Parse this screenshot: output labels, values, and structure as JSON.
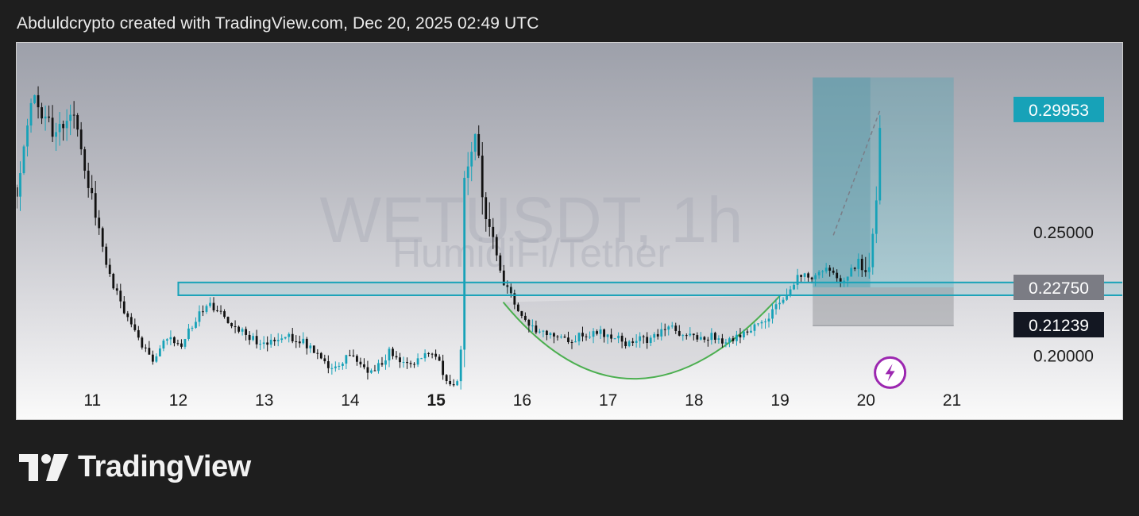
{
  "header": {
    "caption": "Abduldcrypto created with TradingView.com, Dec 20, 2025 02:49 UTC"
  },
  "brand": {
    "name": "TradingView",
    "icon": "tradingview-logo-icon"
  },
  "chart_data": {
    "type": "candlestick",
    "symbol": "WETUSDT, 1h",
    "exchange": "HumidiFi/Tether",
    "x_ticks": [
      {
        "day": 11,
        "label": "11",
        "bold": false
      },
      {
        "day": 12,
        "label": "12",
        "bold": false
      },
      {
        "day": 13,
        "label": "13",
        "bold": false
      },
      {
        "day": 14,
        "label": "14",
        "bold": false
      },
      {
        "day": 15,
        "label": "15",
        "bold": true
      },
      {
        "day": 16,
        "label": "16",
        "bold": false
      },
      {
        "day": 17,
        "label": "17",
        "bold": false
      },
      {
        "day": 18,
        "label": "18",
        "bold": false
      },
      {
        "day": 19,
        "label": "19",
        "bold": false
      },
      {
        "day": 20,
        "label": "20",
        "bold": false
      },
      {
        "day": 21,
        "label": "21",
        "bold": false
      }
    ],
    "x_range": [
      10.12,
      23.0
    ],
    "y_range": [
      0.1735,
      0.3265
    ],
    "y_ticks": [
      {
        "value": 0.25,
        "label": "0.25000"
      },
      {
        "value": 0.2,
        "label": "0.20000"
      }
    ],
    "price_labels": [
      {
        "value": 0.29953,
        "label": "0.29953",
        "color": "#17a2b8",
        "text_color": "#ffffff"
      },
      {
        "value": 0.2275,
        "label": "0.22750",
        "color": "#7b7c84",
        "text_color": "#ffffff"
      },
      {
        "value": 0.21239,
        "label": "0.21239",
        "color": "#131722",
        "text_color": "#ffffff"
      }
    ],
    "colors": {
      "up": "#17a2b8",
      "down": "#111111",
      "accent": "#17a2b8",
      "curve": "#4caf50",
      "lightning": "#9c27b0"
    },
    "anchors": [
      [
        10.12,
        0.268
      ],
      [
        10.3,
        0.305
      ],
      [
        10.55,
        0.29
      ],
      [
        10.8,
        0.298
      ],
      [
        11.0,
        0.262
      ],
      [
        11.2,
        0.232
      ],
      [
        11.45,
        0.212
      ],
      [
        11.72,
        0.196
      ],
      [
        11.85,
        0.207
      ],
      [
        12.05,
        0.204
      ],
      [
        12.15,
        0.212
      ],
      [
        12.35,
        0.222
      ],
      [
        12.5,
        0.216
      ],
      [
        12.7,
        0.211
      ],
      [
        12.95,
        0.204
      ],
      [
        13.2,
        0.208
      ],
      [
        13.4,
        0.207
      ],
      [
        13.6,
        0.2
      ],
      [
        13.8,
        0.193
      ],
      [
        14.0,
        0.2
      ],
      [
        14.25,
        0.193
      ],
      [
        14.45,
        0.201
      ],
      [
        14.7,
        0.197
      ],
      [
        14.9,
        0.201
      ],
      [
        15.05,
        0.196
      ],
      [
        15.15,
        0.187
      ],
      [
        15.28,
        0.19
      ],
      [
        15.32,
        0.272
      ],
      [
        15.45,
        0.29
      ],
      [
        15.55,
        0.265
      ],
      [
        15.65,
        0.245
      ],
      [
        15.8,
        0.228
      ],
      [
        16.0,
        0.215
      ],
      [
        16.2,
        0.21
      ],
      [
        16.5,
        0.206
      ],
      [
        16.8,
        0.209
      ],
      [
        17.0,
        0.209
      ],
      [
        17.2,
        0.205
      ],
      [
        17.5,
        0.207
      ],
      [
        17.7,
        0.212
      ],
      [
        17.9,
        0.207
      ],
      [
        18.2,
        0.208
      ],
      [
        18.4,
        0.205
      ],
      [
        18.6,
        0.209
      ],
      [
        18.8,
        0.213
      ],
      [
        18.95,
        0.22
      ],
      [
        19.1,
        0.226
      ],
      [
        19.25,
        0.233
      ],
      [
        19.35,
        0.232
      ],
      [
        19.55,
        0.236
      ],
      [
        19.7,
        0.23
      ],
      [
        19.8,
        0.233
      ],
      [
        19.9,
        0.236
      ],
      [
        20.0,
        0.232
      ],
      [
        20.05,
        0.24
      ],
      [
        20.1,
        0.25
      ],
      [
        20.13,
        0.27
      ],
      [
        20.17,
        0.299
      ]
    ],
    "support_zone": {
      "x0": 12.0,
      "x1": 23.0,
      "y_top": 0.2295,
      "y_bottom": 0.2243
    },
    "long_position": {
      "x0": 19.38,
      "x1": 21.02,
      "entry": 0.2275,
      "target": 0.3125,
      "stop": 0.212,
      "fill_until": 20.05
    },
    "projection_line": {
      "x0": 19.62,
      "y0": 0.2486,
      "x1": 20.17,
      "y1": 0.2999
    },
    "cup_curve": {
      "x0": 15.78,
      "y0": 0.2215,
      "xm": 17.28,
      "ym": 0.1905,
      "x1": 19.0,
      "y1": 0.2242
    },
    "markers": [
      {
        "type": "lightning",
        "x": 20.28,
        "value": 0.193
      }
    ]
  }
}
